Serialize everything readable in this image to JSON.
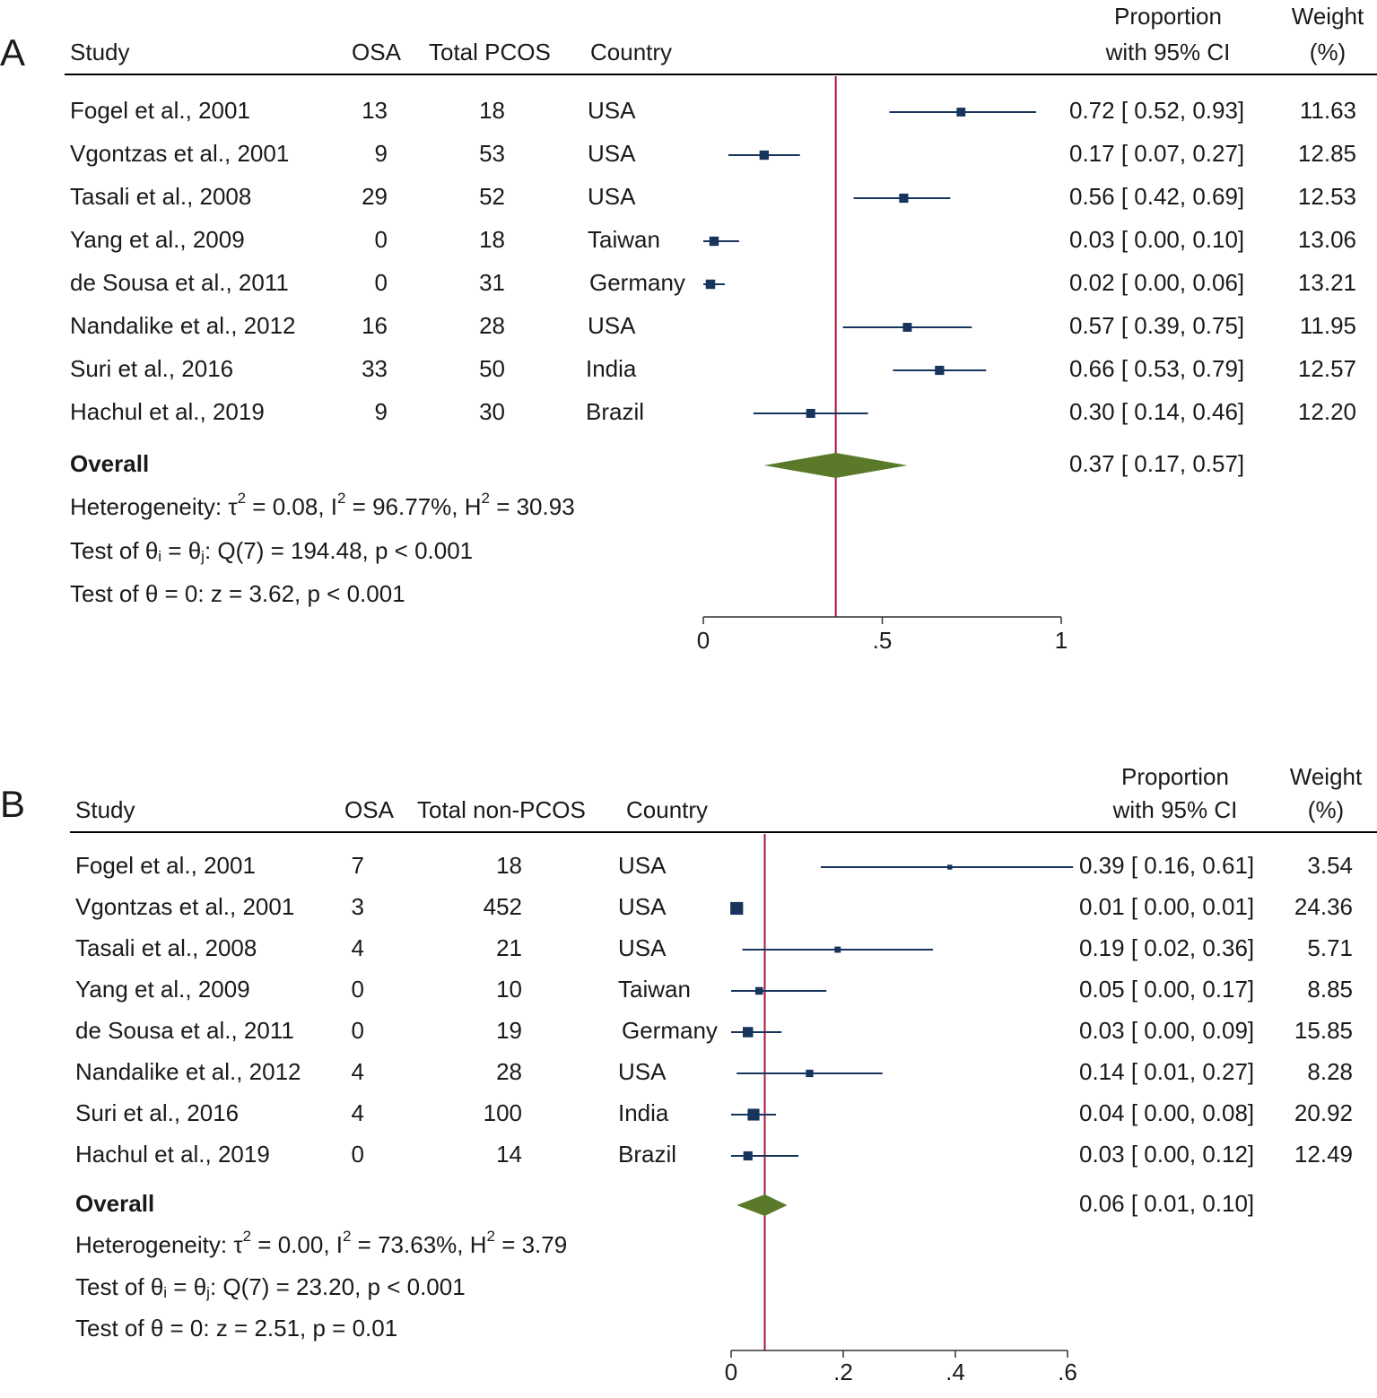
{
  "colors": {
    "marker": "#17345c",
    "line": "#17345c",
    "diamond": "#5a7a2a",
    "overall_line": "#a3173b",
    "axis": "#333333",
    "text": "#1a1a1a"
  },
  "chart_data": [
    {
      "type": "forest",
      "panel_label": "A",
      "headers": {
        "study": "Study",
        "osa": "OSA",
        "total": "Total PCOS",
        "country": "Country",
        "prop_line1": "Proportion",
        "prop_line2": "with 95% CI",
        "weight_line1": "Weight",
        "weight_line2": "(%)"
      },
      "xlim": [
        0,
        1
      ],
      "xticks": [
        0,
        0.5,
        1
      ],
      "xtick_labels": [
        "0",
        ".5",
        "1"
      ],
      "studies": [
        {
          "study": "Fogel et al., 2001",
          "osa": "13",
          "total": "18",
          "country": "USA",
          "est": 0.72,
          "lo": 0.52,
          "hi": 0.93,
          "ci_text": "0.72 [ 0.52,  0.93]",
          "weight": "11.63"
        },
        {
          "study": "Vgontzas et al., 2001",
          "osa": "9",
          "total": "53",
          "country": "USA",
          "est": 0.17,
          "lo": 0.07,
          "hi": 0.27,
          "ci_text": "0.17 [ 0.07,  0.27]",
          "weight": "12.85"
        },
        {
          "study": "Tasali et al., 2008",
          "osa": "29",
          "total": "52",
          "country": "USA",
          "est": 0.56,
          "lo": 0.42,
          "hi": 0.69,
          "ci_text": "0.56 [ 0.42,  0.69]",
          "weight": "12.53"
        },
        {
          "study": "Yang et al., 2009",
          "osa": "0",
          "total": "18",
          "country": "Taiwan",
          "est": 0.03,
          "lo": 0.0,
          "hi": 0.1,
          "ci_text": "0.03 [ 0.00,  0.10]",
          "weight": "13.06"
        },
        {
          "study": "de Sousa et al., 2011",
          "osa": "0",
          "total": "31",
          "country": "Germany",
          "est": 0.02,
          "lo": 0.0,
          "hi": 0.06,
          "ci_text": "0.02 [ 0.00,  0.06]",
          "weight": "13.21"
        },
        {
          "study": "Nandalike et al., 2012",
          "osa": "16",
          "total": "28",
          "country": "USA",
          "est": 0.57,
          "lo": 0.39,
          "hi": 0.75,
          "ci_text": "0.57 [ 0.39,  0.75]",
          "weight": "11.95"
        },
        {
          "study": "Suri et al., 2016",
          "osa": "33",
          "total": "50",
          "country": "India",
          "est": 0.66,
          "lo": 0.53,
          "hi": 0.79,
          "ci_text": "0.66 [ 0.53,  0.79]",
          "weight": "12.57"
        },
        {
          "study": "Hachul et al., 2019",
          "osa": "9",
          "total": "30",
          "country": "Brazil",
          "est": 0.3,
          "lo": 0.14,
          "hi": 0.46,
          "ci_text": "0.30 [ 0.14,  0.46]",
          "weight": "12.20"
        }
      ],
      "overall": {
        "label": "Overall",
        "est": 0.37,
        "lo": 0.17,
        "hi": 0.57,
        "ci_text": "0.37 [ 0.17,  0.57]"
      },
      "heterogeneity": {
        "prefix": "Heterogeneity: ",
        "tau": "τ",
        "sup2": "2",
        "tau_val": " = 0.08, I",
        "i2_val": " = 96.77%, H",
        "h2_val": " = 30.93"
      },
      "test_q": {
        "prefix": "Test of θ",
        "sub_i": "i",
        "mid": " = θ",
        "sub_j": "j",
        "suffix": ": Q(7) = 194.48, p < 0.001"
      },
      "test_z": "Test of θ = 0: z = 3.62, p < 0.001"
    },
    {
      "type": "forest",
      "panel_label": "B",
      "headers": {
        "study": "Study",
        "osa": "OSA",
        "total": "Total non-PCOS",
        "country": "Country",
        "prop_line1": "Proportion",
        "prop_line2": "with 95% CI",
        "weight_line1": "Weight",
        "weight_line2": "(%)"
      },
      "xlim": [
        0,
        0.6
      ],
      "xticks": [
        0,
        0.2,
        0.4,
        0.6
      ],
      "xtick_labels": [
        "0",
        ".2",
        ".4",
        ".6"
      ],
      "studies": [
        {
          "study": "Fogel et al., 2001",
          "osa": "7",
          "total": "18",
          "country": "USA",
          "est": 0.39,
          "lo": 0.16,
          "hi": 0.61,
          "ci_text": "0.39 [ 0.16,  0.61]",
          "weight": "3.54"
        },
        {
          "study": "Vgontzas et al., 2001",
          "osa": "3",
          "total": "452",
          "country": "USA",
          "est": 0.01,
          "lo": 0.0,
          "hi": 0.01,
          "ci_text": "0.01 [ 0.00,  0.01]",
          "weight": "24.36"
        },
        {
          "study": "Tasali et al., 2008",
          "osa": "4",
          "total": "21",
          "country": "USA",
          "est": 0.19,
          "lo": 0.02,
          "hi": 0.36,
          "ci_text": "0.19 [ 0.02,  0.36]",
          "weight": "5.71"
        },
        {
          "study": "Yang et al., 2009",
          "osa": "0",
          "total": "10",
          "country": "Taiwan",
          "est": 0.05,
          "lo": 0.0,
          "hi": 0.17,
          "ci_text": "0.05 [ 0.00,  0.17]",
          "weight": "8.85"
        },
        {
          "study": "de Sousa et al., 2011",
          "osa": "0",
          "total": "19",
          "country": "Germany",
          "est": 0.03,
          "lo": 0.0,
          "hi": 0.09,
          "ci_text": "0.03 [ 0.00,  0.09]",
          "weight": "15.85"
        },
        {
          "study": "Nandalike et al., 2012",
          "osa": "4",
          "total": "28",
          "country": "USA",
          "est": 0.14,
          "lo": 0.01,
          "hi": 0.27,
          "ci_text": "0.14 [ 0.01,  0.27]",
          "weight": "8.28"
        },
        {
          "study": "Suri et al., 2016",
          "osa": "4",
          "total": "100",
          "country": "India",
          "est": 0.04,
          "lo": 0.0,
          "hi": 0.08,
          "ci_text": "0.04 [ 0.00,  0.08]",
          "weight": "20.92"
        },
        {
          "study": "Hachul et al., 2019",
          "osa": "0",
          "total": "14",
          "country": "Brazil",
          "est": 0.03,
          "lo": 0.0,
          "hi": 0.12,
          "ci_text": "0.03 [ 0.00,  0.12]",
          "weight": "12.49"
        }
      ],
      "overall": {
        "label": "Overall",
        "est": 0.06,
        "lo": 0.01,
        "hi": 0.1,
        "ci_text": "0.06 [ 0.01,  0.10]"
      },
      "heterogeneity": {
        "prefix": "Heterogeneity: ",
        "tau": "τ",
        "sup2": "2",
        "tau_val": " = 0.00, I",
        "i2_val": " = 73.63%, H",
        "h2_val": " = 3.79"
      },
      "test_q": {
        "prefix": "Test of θ",
        "sub_i": "i",
        "mid": " = θ",
        "sub_j": "j",
        "suffix": ": Q(7) = 23.20, p < 0.001"
      },
      "test_z": "Test of θ = 0: z = 2.51, p = 0.01"
    }
  ]
}
